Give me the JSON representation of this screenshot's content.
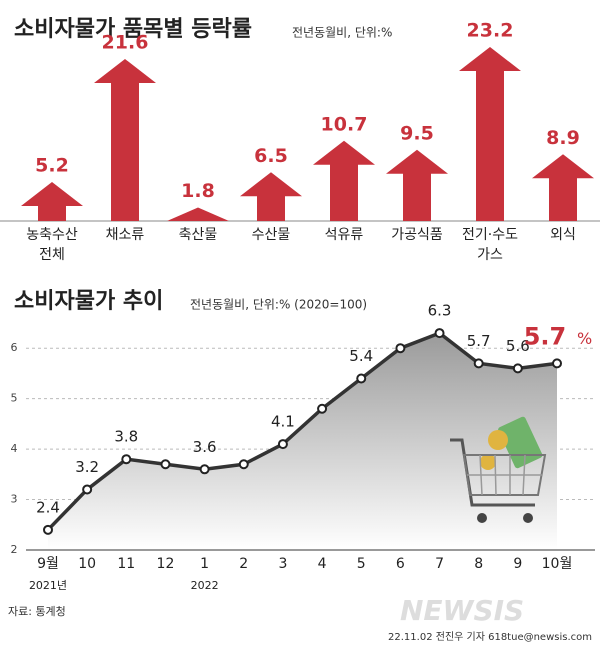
{
  "charts": [
    {
      "type": "arrow-bar",
      "title": "소비자물가 품목별 등락률",
      "subtitle": "전년동월비, 단위:%",
      "categories": [
        "농축수산\n전체",
        "채소류",
        "축산물",
        "수산물",
        "석유류",
        "가공식품",
        "전기·수도\n가스",
        "외식"
      ],
      "values": [
        5.2,
        21.6,
        1.8,
        6.5,
        10.7,
        9.5,
        23.2,
        8.9
      ],
      "color": "#c8323c"
    },
    {
      "type": "line",
      "title": "소비자물가 추이",
      "subtitle": "전년동월비, 단위:%  (2020=100)",
      "categories": [
        "9월",
        "10",
        "11",
        "12",
        "1",
        "2",
        "3",
        "4",
        "5",
        "6",
        "7",
        "8",
        "9",
        "10월"
      ],
      "year_labels": [
        "2021년",
        null,
        null,
        null,
        "2022",
        null,
        null,
        null,
        null,
        null,
        null,
        null,
        null,
        null
      ],
      "values": [
        2.4,
        3.2,
        3.8,
        3.7,
        3.6,
        3.7,
        4.1,
        4.8,
        5.4,
        6.0,
        6.3,
        5.7,
        5.6,
        5.7
      ],
      "value_labels": [
        "2.4",
        "3.2",
        "3.8",
        null,
        "3.6",
        null,
        "4.1",
        null,
        "5.4",
        null,
        "6.3",
        "5.7",
        "5.6",
        "5.7"
      ],
      "last_label_unit": "%",
      "ylim": [
        2,
        6.5
      ],
      "yticks": [
        2,
        3,
        4,
        5,
        6
      ],
      "grid": true,
      "color": "#333333"
    }
  ],
  "source": "자료: 통계청",
  "credit": "22.11.02 전진우 기자 618tue@newsis.com",
  "watermark": "NEWSIS"
}
